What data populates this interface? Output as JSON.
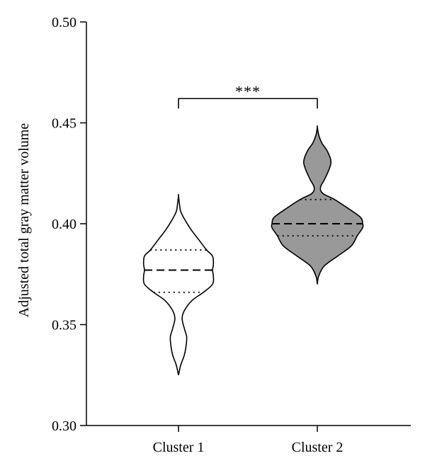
{
  "chart_data": {
    "type": "violin",
    "ylabel": "Adjusted total gray matter volume",
    "ylim": [
      0.3,
      0.5
    ],
    "yticks": [
      "0.30",
      "0.35",
      "0.40",
      "0.45",
      "0.50"
    ],
    "ytick_values": [
      0.3,
      0.35,
      0.4,
      0.45,
      0.5
    ],
    "categories": [
      "Cluster 1",
      "Cluster 2"
    ],
    "series": [
      {
        "category": "Cluster 1",
        "fill": "#ffffff",
        "min": 0.325,
        "max": 0.414,
        "median": 0.377,
        "q1": 0.366,
        "q3": 0.387,
        "density": [
          [
            0.325,
            0.0
          ],
          [
            0.33,
            0.05
          ],
          [
            0.335,
            0.13
          ],
          [
            0.34,
            0.17
          ],
          [
            0.344,
            0.18
          ],
          [
            0.348,
            0.13
          ],
          [
            0.353,
            0.08
          ],
          [
            0.357,
            0.13
          ],
          [
            0.362,
            0.3
          ],
          [
            0.366,
            0.55
          ],
          [
            0.37,
            0.75
          ],
          [
            0.374,
            0.77
          ],
          [
            0.377,
            0.75
          ],
          [
            0.38,
            0.77
          ],
          [
            0.384,
            0.75
          ],
          [
            0.387,
            0.62
          ],
          [
            0.392,
            0.45
          ],
          [
            0.397,
            0.28
          ],
          [
            0.402,
            0.14
          ],
          [
            0.406,
            0.05
          ],
          [
            0.41,
            0.02
          ],
          [
            0.414,
            0.0
          ]
        ]
      },
      {
        "category": "Cluster 2",
        "fill": "#999999",
        "min": 0.37,
        "max": 0.448,
        "median": 0.4,
        "q1": 0.394,
        "q3": 0.412,
        "density": [
          [
            0.37,
            0.0
          ],
          [
            0.374,
            0.03
          ],
          [
            0.379,
            0.15
          ],
          [
            0.384,
            0.45
          ],
          [
            0.389,
            0.75
          ],
          [
            0.394,
            0.88
          ],
          [
            0.398,
            1.0
          ],
          [
            0.4,
            1.0
          ],
          [
            0.403,
            0.96
          ],
          [
            0.407,
            0.72
          ],
          [
            0.412,
            0.38
          ],
          [
            0.415,
            0.12
          ],
          [
            0.418,
            0.07
          ],
          [
            0.422,
            0.16
          ],
          [
            0.427,
            0.26
          ],
          [
            0.431,
            0.3
          ],
          [
            0.436,
            0.22
          ],
          [
            0.44,
            0.1
          ],
          [
            0.444,
            0.03
          ],
          [
            0.448,
            0.0
          ]
        ]
      }
    ],
    "significance": {
      "label": "***",
      "from": "Cluster 1",
      "to": "Cluster 2",
      "y": 0.455
    }
  }
}
